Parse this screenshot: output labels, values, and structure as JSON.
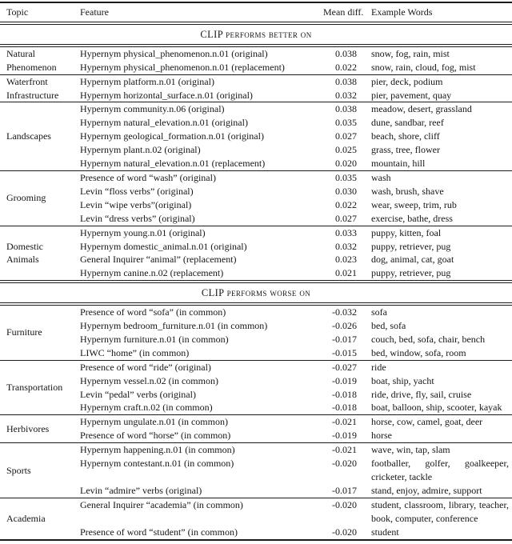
{
  "table": {
    "columns": [
      "Topic",
      "Feature",
      "Mean diff.",
      "Example Words"
    ],
    "sections": [
      {
        "header": "CLIP performs better on",
        "groups": [
          {
            "topic": "Natural Phenomenon",
            "rows": [
              {
                "feature": "Hypernym physical_phenomenon.n.01 (original)",
                "mean_diff": "0.038",
                "example_words": "snow, fog, rain, mist"
              },
              {
                "feature": "Hypernym physical_phenomenon.n.01 (replacement)",
                "mean_diff": "0.022",
                "example_words": "snow, rain, cloud, fog, mist"
              }
            ]
          },
          {
            "topic": "Waterfront Infrastructure",
            "rows": [
              {
                "feature": "Hypernym platform.n.01 (original)",
                "mean_diff": "0.038",
                "example_words": "pier, deck, podium"
              },
              {
                "feature": "Hypernym horizontal_surface.n.01 (original)",
                "mean_diff": "0.032",
                "example_words": "pier, pavement, quay"
              }
            ]
          },
          {
            "topic": "Landscapes",
            "rows": [
              {
                "feature": "Hypernym community.n.06 (original)",
                "mean_diff": "0.038",
                "example_words": "meadow, desert, grassland"
              },
              {
                "feature": "Hypernym natural_elevation.n.01 (original)",
                "mean_diff": "0.035",
                "example_words": "dune, sandbar, reef"
              },
              {
                "feature": "Hypernym geological_formation.n.01 (original)",
                "mean_diff": "0.027",
                "example_words": "beach, shore, cliff"
              },
              {
                "feature": "Hypernym plant.n.02 (original)",
                "mean_diff": "0.025",
                "example_words": "grass, tree, flower"
              },
              {
                "feature": "Hypernym natural_elevation.n.01 (replacement)",
                "mean_diff": "0.020",
                "example_words": "mountain, hill"
              }
            ]
          },
          {
            "topic": "Grooming",
            "rows": [
              {
                "feature": "Presence of word “wash” (original)",
                "mean_diff": "0.035",
                "example_words": "wash"
              },
              {
                "feature": "Levin “floss verbs” (original)",
                "mean_diff": "0.030",
                "example_words": "wash, brush, shave"
              },
              {
                "feature": "Levin “wipe verbs”(original)",
                "mean_diff": "0.022",
                "example_words": "wear, sweep, trim, rub"
              },
              {
                "feature": "Levin “dress verbs” (original)",
                "mean_diff": "0.027",
                "example_words": "exercise, bathe, dress"
              }
            ]
          },
          {
            "topic": "Domestic Animals",
            "rows": [
              {
                "feature": "Hypernym young.n.01 (original)",
                "mean_diff": "0.033",
                "example_words": "puppy, kitten, foal"
              },
              {
                "feature": "Hypernym domestic_animal.n.01 (original)",
                "mean_diff": "0.032",
                "example_words": "puppy, retriever, pug"
              },
              {
                "feature": "General Inquirer “animal” (replacement)",
                "mean_diff": "0.023",
                "example_words": "dog, animal, cat, goat"
              },
              {
                "feature": "Hypernym canine.n.02 (replacement)",
                "mean_diff": "0.021",
                "example_words": "puppy, retriever, pug"
              }
            ]
          }
        ]
      },
      {
        "header": "CLIP performs worse on",
        "groups": [
          {
            "topic": "Furniture",
            "rows": [
              {
                "feature": "Presence of word “sofa” (in common)",
                "mean_diff": "-0.032",
                "example_words": "sofa"
              },
              {
                "feature": "Hypernym bedroom_furniture.n.01 (in common)",
                "mean_diff": "-0.026",
                "example_words": "bed, sofa"
              },
              {
                "feature": "Hypernym furniture.n.01 (in common)",
                "mean_diff": "-0.017",
                "example_words": "couch, bed, sofa, chair, bench"
              },
              {
                "feature": "LIWC “home” (in common)",
                "mean_diff": "-0.015",
                "example_words": "bed, window, sofa, room"
              }
            ]
          },
          {
            "topic": "Transportation",
            "rows": [
              {
                "feature": "Presence of word “ride” (original)",
                "mean_diff": "-0.027",
                "example_words": "ride"
              },
              {
                "feature": "Hypernym vessel.n.02 (in common)",
                "mean_diff": "-0.019",
                "example_words": "boat, ship, yacht"
              },
              {
                "feature": "Levin “pedal” verbs (original)",
                "mean_diff": "-0.018",
                "example_words": "ride, drive, fly, sail, cruise"
              },
              {
                "feature": "Hypernym craft.n.02 (in common)",
                "mean_diff": "-0.018",
                "example_words": "boat, balloon, ship, scooter, kayak"
              }
            ]
          },
          {
            "topic": "Herbivores",
            "rows": [
              {
                "feature": "Hypernym ungulate.n.01 (in common)",
                "mean_diff": "-0.021",
                "example_words": "horse, cow, camel, goat, deer"
              },
              {
                "feature": "Presence of word “horse” (in common)",
                "mean_diff": "-0.019",
                "example_words": "horse"
              }
            ]
          },
          {
            "topic": "Sports",
            "rows": [
              {
                "feature": "Hypernym happening.n.01 (in common)",
                "mean_diff": "-0.021",
                "example_words": "wave, win, tap, slam"
              },
              {
                "feature": "Hypernym contestant.n.01 (in common)",
                "mean_diff": "-0.020",
                "example_words": "footballer, golfer, goalkeeper, cricketer, tackle"
              },
              {
                "feature": "Levin “admire” verbs (original)",
                "mean_diff": "-0.017",
                "example_words": "stand, enjoy, admire, support"
              }
            ]
          },
          {
            "topic": "Academia",
            "rows": [
              {
                "feature": "General Inquirer “academia” (in common)",
                "mean_diff": "-0.020",
                "example_words": "student, classroom, library, teacher, book, computer, conference"
              },
              {
                "feature": "Presence of word “student” (in common)",
                "mean_diff": "-0.020",
                "example_words": "student"
              }
            ]
          }
        ]
      }
    ]
  }
}
